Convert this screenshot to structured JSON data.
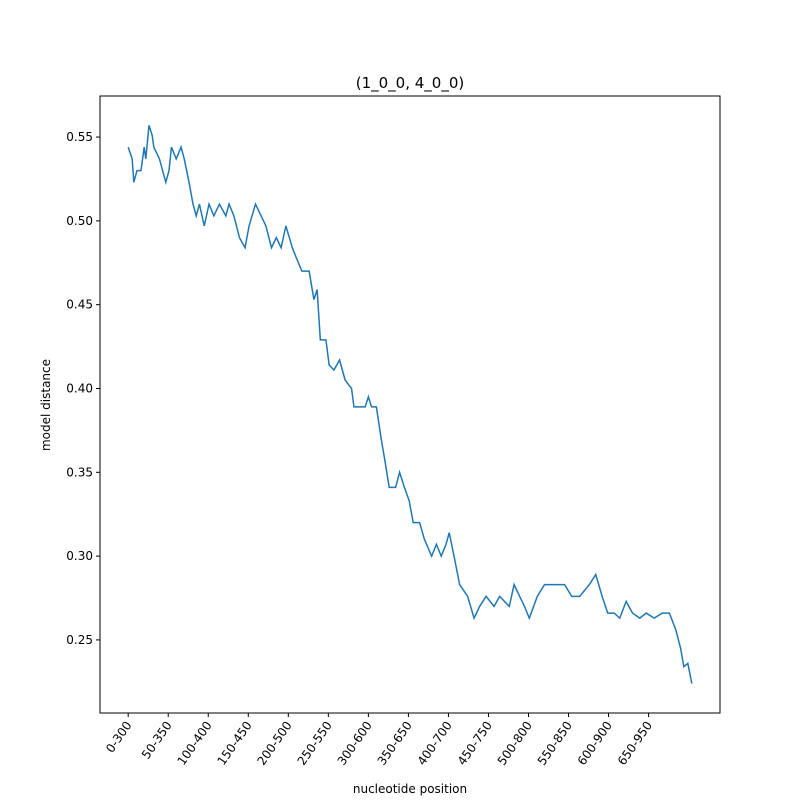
{
  "chart_data": {
    "type": "line",
    "title": "(1_0_0, 4_0_0)",
    "x_label": "nucleotide position",
    "y_label": "model distance",
    "x": [
      0,
      5,
      7,
      11,
      16,
      20,
      22,
      26,
      30,
      32,
      39,
      47,
      51,
      54,
      60,
      66,
      70,
      76,
      81,
      85,
      89,
      95,
      101,
      107,
      114,
      122,
      126,
      132,
      139,
      146,
      151,
      159,
      166,
      172,
      179,
      185,
      191,
      197,
      205,
      210,
      217,
      226,
      232,
      236,
      240,
      247,
      251,
      257,
      264,
      271,
      279,
      282,
      289,
      296,
      300,
      304,
      310,
      316,
      321,
      326,
      334,
      339,
      345,
      351,
      356,
      364,
      370,
      379,
      385,
      391,
      397,
      401,
      407,
      414,
      424,
      432,
      439,
      447,
      457,
      464,
      476,
      482,
      489,
      495,
      501,
      511,
      520,
      532,
      545,
      554,
      564,
      576,
      584,
      592,
      599,
      607,
      614,
      622,
      630,
      639,
      647,
      657,
      667,
      676,
      684,
      690,
      694,
      699,
      704
    ],
    "series": [
      {
        "name": "model distance",
        "color": "#1f77b4",
        "values": [
          0.544,
          0.537,
          0.523,
          0.53,
          0.53,
          0.544,
          0.537,
          0.557,
          0.551,
          0.544,
          0.537,
          0.523,
          0.53,
          0.544,
          0.537,
          0.544,
          0.537,
          0.523,
          0.51,
          0.503,
          0.51,
          0.497,
          0.51,
          0.503,
          0.51,
          0.503,
          0.51,
          0.503,
          0.49,
          0.484,
          0.497,
          0.51,
          0.503,
          0.497,
          0.484,
          0.49,
          0.484,
          0.497,
          0.484,
          0.478,
          0.47,
          0.47,
          0.453,
          0.459,
          0.429,
          0.429,
          0.414,
          0.411,
          0.417,
          0.405,
          0.4,
          0.389,
          0.389,
          0.389,
          0.395,
          0.389,
          0.389,
          0.37,
          0.356,
          0.341,
          0.341,
          0.35,
          0.341,
          0.333,
          0.32,
          0.32,
          0.31,
          0.3,
          0.307,
          0.3,
          0.307,
          0.314,
          0.3,
          0.283,
          0.276,
          0.263,
          0.27,
          0.276,
          0.27,
          0.276,
          0.27,
          0.283,
          0.276,
          0.27,
          0.263,
          0.276,
          0.283,
          0.283,
          0.283,
          0.276,
          0.276,
          0.283,
          0.289,
          0.276,
          0.266,
          0.266,
          0.263,
          0.273,
          0.266,
          0.263,
          0.266,
          0.263,
          0.266,
          0.266,
          0.256,
          0.245,
          0.234,
          0.236,
          0.224
        ]
      }
    ],
    "xlim": [
      -35.2,
      739.2
    ],
    "ylim": [
      0.2064,
      0.5745
    ],
    "xticks": [
      {
        "value": 0,
        "label": "0-300"
      },
      {
        "value": 50,
        "label": "50-350"
      },
      {
        "value": 100,
        "label": "100-400"
      },
      {
        "value": 150,
        "label": "150-450"
      },
      {
        "value": 200,
        "label": "200-500"
      },
      {
        "value": 250,
        "label": "250-550"
      },
      {
        "value": 300,
        "label": "300-600"
      },
      {
        "value": 350,
        "label": "350-650"
      },
      {
        "value": 400,
        "label": "400-700"
      },
      {
        "value": 450,
        "label": "450-750"
      },
      {
        "value": 500,
        "label": "500-800"
      },
      {
        "value": 550,
        "label": "550-850"
      },
      {
        "value": 600,
        "label": "600-900"
      },
      {
        "value": 650,
        "label": "650-950"
      }
    ],
    "yticks": [
      {
        "value": 0.25,
        "label": "0.25"
      },
      {
        "value": 0.3,
        "label": "0.30"
      },
      {
        "value": 0.35,
        "label": "0.35"
      },
      {
        "value": 0.4,
        "label": "0.40"
      },
      {
        "value": 0.45,
        "label": "0.45"
      },
      {
        "value": 0.5,
        "label": "0.50"
      },
      {
        "value": 0.55,
        "label": "0.55"
      }
    ],
    "grid": false
  }
}
